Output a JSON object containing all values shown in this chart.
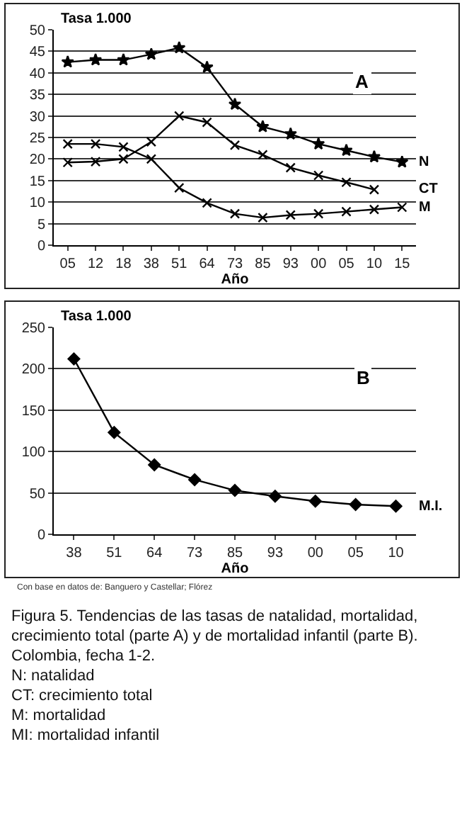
{
  "chart_data": [
    {
      "type": "line",
      "ylabel": "Tasa 1.000",
      "xlabel": "Año",
      "categories": [
        "05",
        "12",
        "18",
        "38",
        "51",
        "64",
        "73",
        "85",
        "93",
        "00",
        "05",
        "10",
        "15"
      ],
      "series": [
        {
          "name": "N",
          "color": "#000000",
          "marker": "star",
          "values": [
            42.5,
            43,
            43,
            44.3,
            45.8,
            41.3,
            32.7,
            27.5,
            25.8,
            23.5,
            22,
            20.5,
            19.3
          ]
        },
        {
          "name": "CT",
          "color": "#000000",
          "marker": "cross",
          "values": [
            19.2,
            19.4,
            20,
            24,
            30,
            28.5,
            23.2,
            21,
            18,
            16.2,
            14.6,
            12.9,
            null
          ]
        },
        {
          "name": "M",
          "color": "#000000",
          "marker": "cross",
          "values": [
            23.5,
            23.5,
            22.8,
            20,
            13.3,
            9.8,
            7.3,
            6.4,
            7,
            7.3,
            7.8,
            8.3,
            8.8
          ]
        }
      ],
      "ylim": [
        0,
        50
      ],
      "yticks": [
        0,
        5,
        10,
        15,
        20,
        25,
        30,
        35,
        40,
        45,
        50
      ],
      "grid": "y",
      "legend": false,
      "annotations": [
        "A"
      ]
    },
    {
      "type": "line",
      "ylabel": "Tasa 1.000",
      "xlabel": "Año",
      "categories": [
        "38",
        "51",
        "64",
        "73",
        "85",
        "93",
        "00",
        "05",
        "10"
      ],
      "series": [
        {
          "name": "M.I.",
          "color": "#000000",
          "marker": "diamond",
          "values": [
            212,
            123,
            84,
            66,
            53,
            46,
            40,
            36,
            34
          ]
        }
      ],
      "ylim": [
        0,
        250
      ],
      "yticks": [
        0,
        50,
        100,
        150,
        200,
        250
      ],
      "grid": "y",
      "legend": false,
      "annotations": [
        "B",
        "Con base en datos de: Banguero y Castellar; Flórez",
        "Figura 5. Tendencias de las tasas de natalidad, mortalidad, crecimiento total (parte A) y de mortalidad infantil (parte B). Colombia, fecha 1-2.",
        "N: natalidad",
        "CT: crecimiento total",
        "M: mortalidad",
        "MI: mortalidad infantil"
      ]
    }
  ]
}
